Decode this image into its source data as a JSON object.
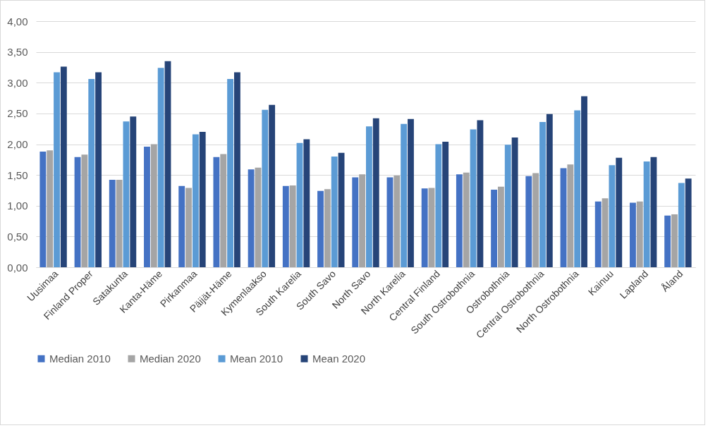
{
  "chart_data": {
    "type": "bar",
    "categories": [
      "Uusimaa",
      "Finland Proper",
      "Satakunta",
      "Kanta-Häme",
      "Pirkanmaa",
      "Päijät-Häme",
      "Kymenlaakso",
      "South Karelia",
      "South Savo",
      "North Savo",
      "North Karelia",
      "Central Finland",
      "South Ostrobothnia",
      "Ostrobothnia",
      "Central Ostrobothnia",
      "North Ostrobothnia",
      "Kainuu",
      "Lapland",
      "Åland"
    ],
    "series": [
      {
        "name": "Median 2010",
        "color": "#4472c4",
        "values": [
          1.88,
          1.79,
          1.42,
          1.96,
          1.32,
          1.79,
          1.59,
          1.32,
          1.24,
          1.46,
          1.46,
          1.28,
          1.51,
          1.26,
          1.48,
          1.61,
          1.07,
          1.05,
          0.84
        ]
      },
      {
        "name": "Median 2020",
        "color": "#a5a5a5",
        "values": [
          1.9,
          1.83,
          1.42,
          2.0,
          1.29,
          1.84,
          1.62,
          1.33,
          1.27,
          1.51,
          1.49,
          1.29,
          1.54,
          1.31,
          1.53,
          1.67,
          1.12,
          1.07,
          0.86
        ]
      },
      {
        "name": "Mean 2010",
        "color": "#5b9bd5",
        "values": [
          3.17,
          3.06,
          2.37,
          3.24,
          2.16,
          3.06,
          2.56,
          2.02,
          1.8,
          2.29,
          2.33,
          2.0,
          2.24,
          1.99,
          2.36,
          2.55,
          1.66,
          1.72,
          1.37
        ]
      },
      {
        "name": "Mean 2020",
        "color": "#264478",
        "values": [
          3.26,
          3.17,
          2.45,
          3.35,
          2.2,
          3.17,
          2.64,
          2.08,
          1.86,
          2.42,
          2.41,
          2.04,
          2.39,
          2.11,
          2.49,
          2.78,
          1.78,
          1.79,
          1.44
        ]
      }
    ],
    "ylim": [
      0,
      4
    ],
    "yticks": [
      {
        "value": 0,
        "label": "0,00"
      },
      {
        "value": 0.5,
        "label": "0,50"
      },
      {
        "value": 1,
        "label": "1,00"
      },
      {
        "value": 1.5,
        "label": "1,50"
      },
      {
        "value": 2,
        "label": "2,00"
      },
      {
        "value": 2.5,
        "label": "2,50"
      },
      {
        "value": 3,
        "label": "3,00"
      },
      {
        "value": 3.5,
        "label": "3,50"
      },
      {
        "value": 4,
        "label": "4,00"
      }
    ],
    "grid": "y",
    "legend": "bottom"
  }
}
